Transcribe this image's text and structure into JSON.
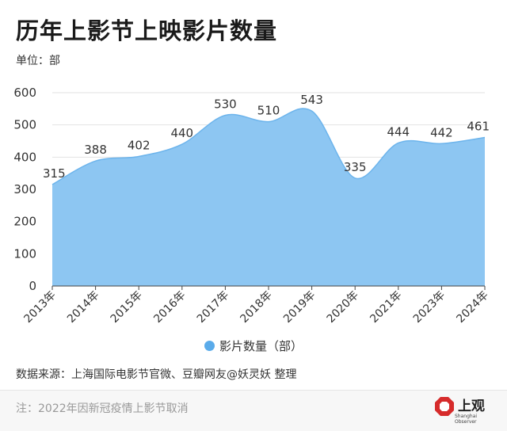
{
  "header": {
    "title": "历年上影节上映影片数量",
    "unit": "单位：部"
  },
  "chart_data": {
    "type": "area",
    "categories": [
      "2013年",
      "2014年",
      "2015年",
      "2016年",
      "2017年",
      "2018年",
      "2019年",
      "2020年",
      "2021年",
      "2023年",
      "2024年"
    ],
    "series": [
      {
        "name": "影片数量（部）",
        "values": [
          315,
          388,
          402,
          440,
          530,
          510,
          543,
          335,
          444,
          442,
          461
        ]
      }
    ],
    "ylim": [
      0,
      600
    ],
    "yticks": [
      0,
      100,
      200,
      300,
      400,
      500,
      600
    ],
    "grid": true,
    "legend": "bottom-center",
    "colors": {
      "fill": "#8dc6f2",
      "line": "#6cb4ec",
      "legend": "#5aabea"
    }
  },
  "footer": {
    "source": "数据来源：上海国际电影节官微、豆瓣网友@妖灵妖 整理",
    "note": "注：2022年因新冠疫情上影节取消",
    "logo_text": "上观",
    "logo_sub": "Shanghai Observer"
  }
}
